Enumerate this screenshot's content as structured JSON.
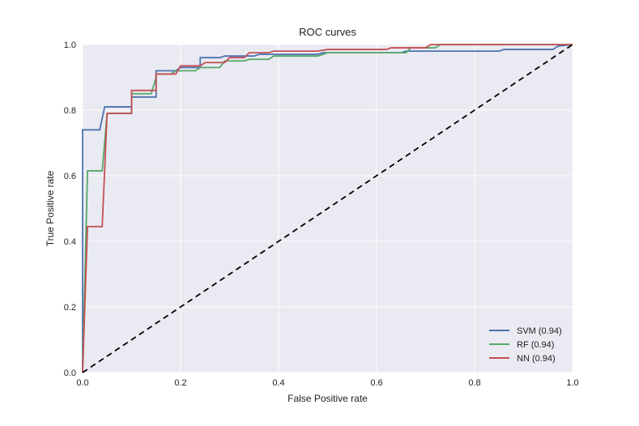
{
  "chart_data": {
    "type": "line",
    "title": "ROC curves",
    "xlabel": "False Positive rate",
    "ylabel": "True Positive rate",
    "xlim": [
      0,
      1
    ],
    "ylim": [
      0,
      1
    ],
    "xticks": [
      0.0,
      0.2,
      0.4,
      0.6,
      0.8,
      1.0
    ],
    "yticks": [
      0.0,
      0.2,
      0.4,
      0.6,
      0.8,
      1.0
    ],
    "xtick_labels": [
      "0.0",
      "0.2",
      "0.4",
      "0.6",
      "0.8",
      "1.0"
    ],
    "ytick_labels": [
      "0.0",
      "0.2",
      "0.4",
      "0.6",
      "0.8",
      "1.0"
    ],
    "grid": true,
    "legend_position": "bottom-right",
    "background": "#eaeaf2",
    "diagonal": {
      "x": [
        0,
        1
      ],
      "y": [
        0,
        1
      ],
      "color": "#000000",
      "style": "dashed"
    },
    "series": [
      {
        "name": "SVM",
        "auc": "0.94",
        "legend_label": "SVM (0.94)",
        "color": "#4c72b0",
        "x": [
          0.0,
          0.0,
          0.01,
          0.01,
          0.035,
          0.045,
          0.05,
          0.09,
          0.1,
          0.1,
          0.14,
          0.15,
          0.15,
          0.19,
          0.2,
          0.24,
          0.24,
          0.28,
          0.29,
          0.35,
          0.36,
          0.48,
          0.49,
          0.65,
          0.66,
          0.85,
          0.86,
          0.96,
          0.97,
          1.0
        ],
        "y": [
          0.0,
          0.74,
          0.74,
          0.74,
          0.74,
          0.81,
          0.81,
          0.81,
          0.81,
          0.84,
          0.84,
          0.84,
          0.92,
          0.92,
          0.93,
          0.93,
          0.96,
          0.96,
          0.965,
          0.965,
          0.97,
          0.97,
          0.975,
          0.975,
          0.98,
          0.98,
          0.985,
          0.985,
          0.995,
          1.0
        ]
      },
      {
        "name": "RF",
        "auc": "0.94",
        "legend_label": "RF (0.94)",
        "color": "#55a868",
        "x": [
          0.0,
          0.01,
          0.04,
          0.05,
          0.05,
          0.09,
          0.1,
          0.1,
          0.14,
          0.15,
          0.15,
          0.18,
          0.19,
          0.23,
          0.24,
          0.28,
          0.29,
          0.33,
          0.34,
          0.38,
          0.39,
          0.48,
          0.5,
          0.66,
          0.67,
          0.72,
          0.73,
          1.0
        ],
        "y": [
          0.0,
          0.615,
          0.615,
          0.79,
          0.79,
          0.79,
          0.79,
          0.85,
          0.85,
          0.9,
          0.91,
          0.91,
          0.92,
          0.92,
          0.93,
          0.93,
          0.95,
          0.95,
          0.955,
          0.955,
          0.965,
          0.965,
          0.975,
          0.975,
          0.99,
          0.99,
          1.0,
          1.0
        ]
      },
      {
        "name": "NN",
        "auc": "0.94",
        "legend_label": "NN (0.94)",
        "color": "#c44e52",
        "x": [
          0.0,
          0.01,
          0.04,
          0.05,
          0.05,
          0.09,
          0.1,
          0.1,
          0.14,
          0.15,
          0.15,
          0.19,
          0.2,
          0.24,
          0.25,
          0.29,
          0.3,
          0.33,
          0.34,
          0.38,
          0.39,
          0.48,
          0.5,
          0.62,
          0.63,
          0.7,
          0.71,
          1.0
        ],
        "y": [
          0.0,
          0.445,
          0.445,
          0.79,
          0.79,
          0.79,
          0.79,
          0.86,
          0.86,
          0.86,
          0.91,
          0.91,
          0.935,
          0.935,
          0.945,
          0.945,
          0.96,
          0.96,
          0.975,
          0.975,
          0.98,
          0.98,
          0.985,
          0.985,
          0.99,
          0.99,
          1.0,
          1.0
        ]
      }
    ]
  }
}
